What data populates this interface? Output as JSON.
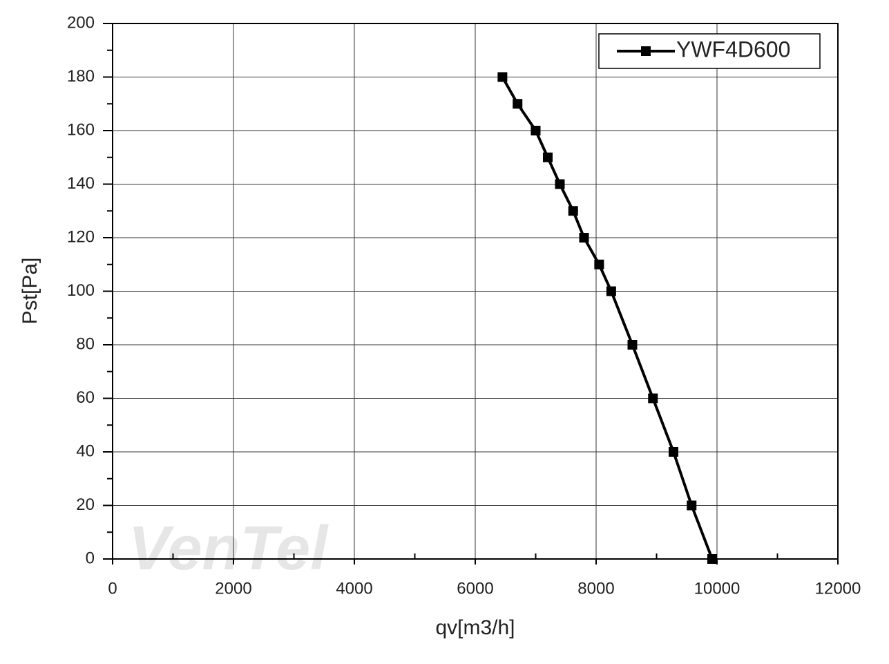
{
  "chart_data": {
    "type": "line",
    "x_label": "qv[m3/h]",
    "y_label": "Pst[Pa]",
    "watermark": "VenTel",
    "x": [
      6450,
      6700,
      7000,
      7200,
      7400,
      7620,
      7800,
      8050,
      8250,
      8600,
      8940,
      9280,
      9580,
      9920
    ],
    "series": [
      {
        "name": "YWF4D600",
        "color": "#000000",
        "values": [
          180,
          170,
          160,
          150,
          140,
          130,
          120,
          110,
          100,
          80,
          60,
          40,
          20,
          0
        ]
      }
    ],
    "xlim": [
      0,
      12000
    ],
    "xticks": [
      0,
      2000,
      4000,
      6000,
      8000,
      10000,
      12000
    ],
    "ylim": [
      0,
      200
    ],
    "yticks": [
      0,
      20,
      40,
      60,
      80,
      100,
      120,
      140,
      160,
      180,
      200
    ],
    "grid": true,
    "legend": "top-right"
  }
}
